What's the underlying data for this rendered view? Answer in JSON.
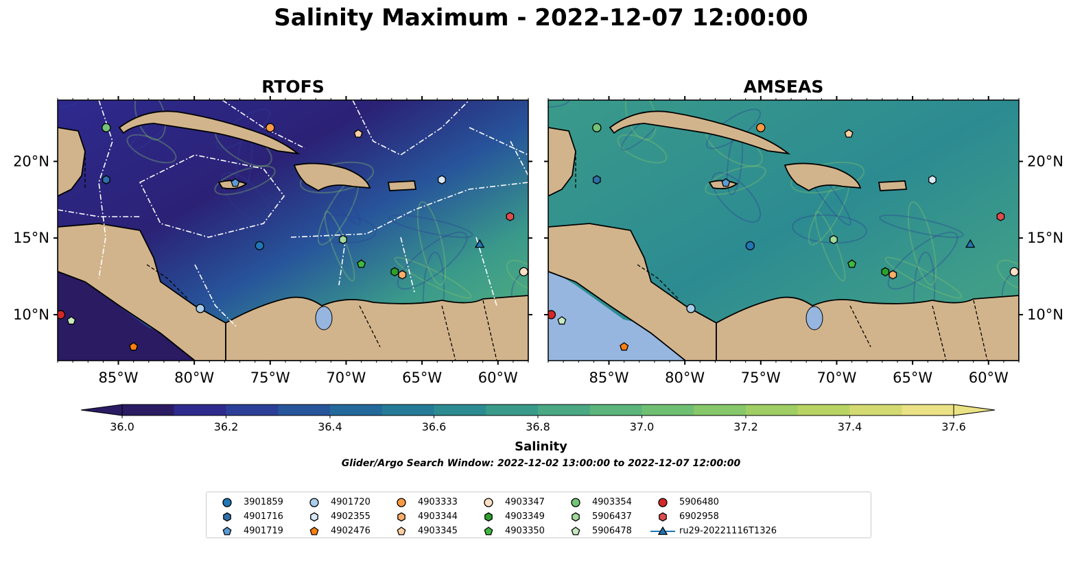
{
  "title": "Salinity Maximum - 2022-12-07 12:00:00",
  "chart_data": [
    {
      "type": "heatmap",
      "title": "RTOFS",
      "x_ticks": [
        "85°W",
        "80°W",
        "75°W",
        "70°W",
        "65°W",
        "60°W"
      ],
      "y_ticks": [
        "20°N",
        "15°N",
        "10°N"
      ],
      "xlim": [
        -89,
        -58
      ],
      "ylim": [
        7,
        24
      ],
      "y_tick_side": "left"
    },
    {
      "type": "heatmap",
      "title": "AMSEAS",
      "x_ticks": [
        "85°W",
        "80°W",
        "75°W",
        "70°W",
        "65°W",
        "60°W"
      ],
      "y_ticks": [
        "20°N",
        "15°N",
        "10°N"
      ],
      "xlim": [
        -89,
        -58
      ],
      "ylim": [
        7,
        24
      ],
      "y_tick_side": "right"
    }
  ],
  "colorbar": {
    "label": "Salinity",
    "min": 36.0,
    "max": 37.6,
    "ticks": [
      "36.0",
      "36.2",
      "36.4",
      "36.6",
      "36.8",
      "37.0",
      "37.2",
      "37.4",
      "37.6"
    ],
    "colors": [
      "#2a1b63",
      "#2e2a8e",
      "#2b3f98",
      "#27559b",
      "#23699b",
      "#257b97",
      "#2c8b91",
      "#3a9a8a",
      "#4aa883",
      "#5bb57b",
      "#6fbf73",
      "#86c76a",
      "#9fce64",
      "#bad464",
      "#d4da72",
      "#eae285"
    ]
  },
  "search_window": "Glider/Argo Search Window: 2022-12-02 13:00:00 to 2022-12-07 12:00:00",
  "legend": {
    "items": [
      {
        "label": "3901859",
        "color": "#1f77b4",
        "marker": "circle"
      },
      {
        "label": "4901716",
        "color": "#2f6fa8",
        "marker": "hexagon"
      },
      {
        "label": "4901719",
        "color": "#5b9bd5",
        "marker": "pentagon"
      },
      {
        "label": "4901720",
        "color": "#a9cdea",
        "marker": "circle"
      },
      {
        "label": "4902355",
        "color": "#d8e8f6",
        "marker": "hexagon"
      },
      {
        "label": "4902476",
        "color": "#ff7f0e",
        "marker": "pentagon"
      },
      {
        "label": "4903333",
        "color": "#fd9a44",
        "marker": "circle"
      },
      {
        "label": "4903344",
        "color": "#fdae6b",
        "marker": "hexagon"
      },
      {
        "label": "4903345",
        "color": "#fdd0a2",
        "marker": "pentagon"
      },
      {
        "label": "4903347",
        "color": "#fde0c5",
        "marker": "circle"
      },
      {
        "label": "4903349",
        "color": "#2ca02c",
        "marker": "hexagon"
      },
      {
        "label": "4903350",
        "color": "#3fb93f",
        "marker": "pentagon"
      },
      {
        "label": "4903354",
        "color": "#74c476",
        "marker": "circle"
      },
      {
        "label": "5906437",
        "color": "#a1d99b",
        "marker": "hexagon"
      },
      {
        "label": "5906478",
        "color": "#c7e9c0",
        "marker": "pentagon"
      },
      {
        "label": "5906480",
        "color": "#d62728",
        "marker": "circle"
      },
      {
        "label": "6902958",
        "color": "#e04c4c",
        "marker": "hexagon"
      },
      {
        "label": "ru29-20221116T1326",
        "color": "#1f77b4",
        "marker": "triangle-line"
      }
    ]
  }
}
